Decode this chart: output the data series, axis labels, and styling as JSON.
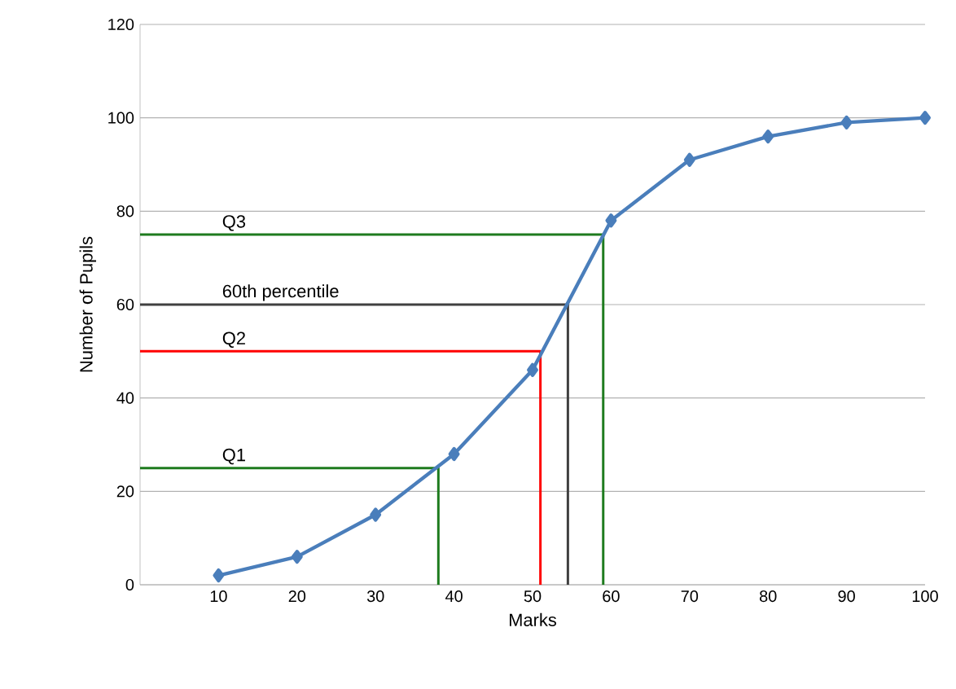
{
  "chart_data": {
    "type": "line",
    "xlabel": "Marks",
    "ylabel": "Number of Pupils",
    "xlim": [
      0,
      100
    ],
    "ylim": [
      0,
      120
    ],
    "xticks": [
      10,
      20,
      30,
      40,
      50,
      60,
      70,
      80,
      90,
      100
    ],
    "yticks": [
      0,
      20,
      40,
      60,
      80,
      100,
      120
    ],
    "grid": "y",
    "marker": "diamond",
    "series": [
      {
        "x": [
          10,
          20,
          30,
          40,
          50,
          60,
          70,
          80,
          90,
          100
        ],
        "values": [
          2,
          6,
          15,
          28,
          46,
          78,
          91,
          96,
          99,
          100
        ],
        "color": "#4a7ebb"
      },
      {
        "name": "Q1",
        "x": [
          0,
          38,
          38
        ],
        "values": [
          25,
          25,
          0
        ],
        "color": "#1e7b1e",
        "marker": "none"
      },
      {
        "name": "Q2",
        "x": [
          0,
          51,
          51
        ],
        "values": [
          50,
          50,
          0
        ],
        "color": "#ff0000",
        "marker": "none"
      },
      {
        "name": "60th percentile",
        "x": [
          0,
          54.5,
          54.5
        ],
        "values": [
          60,
          60,
          0
        ],
        "color": "#404040",
        "marker": "none"
      },
      {
        "name": "Q3",
        "x": [
          0,
          59,
          59
        ],
        "values": [
          75,
          75,
          0
        ],
        "color": "#1e7b1e",
        "marker": "none"
      }
    ]
  }
}
